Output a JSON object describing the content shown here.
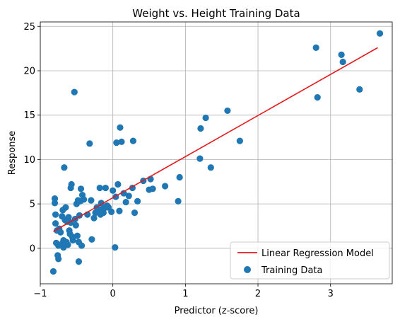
{
  "chart_data": {
    "type": "scatter",
    "title": "Weight vs. Height Training Data",
    "xlabel": "Predictor (z-score)",
    "ylabel": "Response",
    "xlim": [
      -1,
      3.85
    ],
    "ylim": [
      -4,
      25.5
    ],
    "xticks": [
      -1,
      0,
      1,
      2,
      3
    ],
    "xtick_labels": [
      "−1",
      "0",
      "1",
      "2",
      "3"
    ],
    "yticks": [
      0,
      5,
      10,
      15,
      20,
      25
    ],
    "ytick_labels": [
      "0",
      "5",
      "10",
      "15",
      "20",
      "25"
    ],
    "grid": true,
    "legend_position": "lower-right",
    "series": [
      {
        "name": "Linear Regression Model",
        "kind": "line",
        "color": "#e41a1c",
        "x": [
          -0.82,
          3.65
        ],
        "y": [
          1.9,
          22.6
        ]
      },
      {
        "name": "Training Data",
        "kind": "scatter",
        "color": "#1f77b4",
        "points": [
          [
            -0.82,
            -2.6
          ],
          [
            -0.8,
            5.6
          ],
          [
            -0.8,
            5.1
          ],
          [
            -0.79,
            3.8
          ],
          [
            -0.79,
            2.8
          ],
          [
            -0.78,
            0.6
          ],
          [
            -0.77,
            2.0
          ],
          [
            -0.76,
            -0.8
          ],
          [
            -0.75,
            0.3
          ],
          [
            -0.75,
            -1.2
          ],
          [
            -0.74,
            2.2
          ],
          [
            -0.72,
            1.8
          ],
          [
            -0.7,
            0.5
          ],
          [
            -0.7,
            3.6
          ],
          [
            -0.69,
            4.3
          ],
          [
            -0.68,
            0.9
          ],
          [
            -0.68,
            0.1
          ],
          [
            -0.67,
            9.1
          ],
          [
            -0.66,
            3.2
          ],
          [
            -0.65,
            4.6
          ],
          [
            -0.64,
            0.7
          ],
          [
            -0.63,
            3.0
          ],
          [
            -0.62,
            0.4
          ],
          [
            -0.61,
            3.5
          ],
          [
            -0.6,
            2.0
          ],
          [
            -0.59,
            1.6
          ],
          [
            -0.58,
            2.9
          ],
          [
            -0.58,
            6.8
          ],
          [
            -0.57,
            7.2
          ],
          [
            -0.56,
            1.3
          ],
          [
            -0.55,
            0.9
          ],
          [
            -0.53,
            17.6
          ],
          [
            -0.52,
            3.3
          ],
          [
            -0.51,
            2.6
          ],
          [
            -0.5,
            5.0
          ],
          [
            -0.49,
            1.4
          ],
          [
            -0.48,
            5.4
          ],
          [
            -0.47,
            0.7
          ],
          [
            -0.47,
            -1.5
          ],
          [
            -0.46,
            3.7
          ],
          [
            -0.45,
            5.3
          ],
          [
            -0.44,
            6.7
          ],
          [
            -0.43,
            0.3
          ],
          [
            -0.42,
            6.0
          ],
          [
            -0.4,
            5.5
          ],
          [
            -0.35,
            3.8
          ],
          [
            -0.32,
            11.8
          ],
          [
            -0.3,
            5.4
          ],
          [
            -0.29,
            1.0
          ],
          [
            -0.26,
            3.4
          ],
          [
            -0.24,
            4.0
          ],
          [
            -0.22,
            4.6
          ],
          [
            -0.2,
            4.1
          ],
          [
            -0.18,
            6.8
          ],
          [
            -0.17,
            3.8
          ],
          [
            -0.16,
            5.1
          ],
          [
            -0.15,
            4.4
          ],
          [
            -0.13,
            4.0
          ],
          [
            -0.12,
            4.5
          ],
          [
            -0.1,
            6.8
          ],
          [
            -0.08,
            4.8
          ],
          [
            -0.06,
            4.6
          ],
          [
            -0.02,
            4.1
          ],
          [
            0.0,
            6.5
          ],
          [
            0.03,
            0.1
          ],
          [
            0.04,
            5.8
          ],
          [
            0.05,
            11.9
          ],
          [
            0.07,
            7.2
          ],
          [
            0.09,
            4.2
          ],
          [
            0.1,
            13.6
          ],
          [
            0.12,
            12.0
          ],
          [
            0.15,
            6.2
          ],
          [
            0.18,
            5.2
          ],
          [
            0.22,
            5.9
          ],
          [
            0.27,
            6.8
          ],
          [
            0.28,
            12.1
          ],
          [
            0.3,
            4.0
          ],
          [
            0.34,
            5.3
          ],
          [
            0.42,
            7.6
          ],
          [
            0.5,
            6.6
          ],
          [
            0.52,
            7.8
          ],
          [
            0.55,
            6.7
          ],
          [
            0.72,
            7.0
          ],
          [
            0.9,
            5.3
          ],
          [
            0.92,
            8.0
          ],
          [
            1.2,
            10.1
          ],
          [
            1.21,
            13.5
          ],
          [
            1.28,
            14.7
          ],
          [
            1.35,
            9.1
          ],
          [
            1.58,
            15.5
          ],
          [
            1.75,
            12.1
          ],
          [
            2.8,
            22.6
          ],
          [
            2.82,
            17.0
          ],
          [
            3.15,
            21.8
          ],
          [
            3.17,
            21.0
          ],
          [
            3.4,
            17.9
          ],
          [
            3.68,
            24.2
          ]
        ]
      }
    ]
  }
}
